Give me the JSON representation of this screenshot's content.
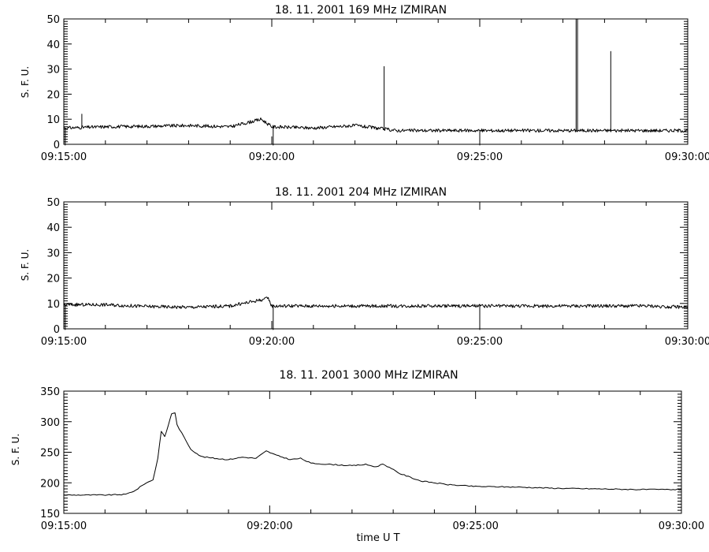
{
  "chart_data": [
    {
      "type": "line",
      "title": "18.  11.  2001    169  MHz    IZMIRAN",
      "ylabel": "S.  F.  U.",
      "xlabel": "",
      "xlim": [
        "09:15:00",
        "09:30:00"
      ],
      "ylim": [
        0,
        50
      ],
      "x_ticks": [
        "09:15:00",
        "09:20:00",
        "09:25:00",
        "09:30:00"
      ],
      "y_ticks": [
        0,
        10,
        20,
        30,
        40,
        50
      ],
      "grid": false,
      "series": [
        {
          "name": "",
          "baseline": [
            [
              "09:15:00",
              6.5
            ],
            [
              "09:16:00",
              7
            ],
            [
              "09:17:00",
              7.2
            ],
            [
              "09:18:00",
              7.5
            ],
            [
              "09:19:00",
              7
            ],
            [
              "09:19:45",
              10
            ],
            [
              "09:20:00",
              7
            ],
            [
              "09:21:00",
              6.5
            ],
            [
              "09:22:00",
              7.5
            ],
            [
              "09:23:00",
              5.5
            ],
            [
              "09:24:00",
              5.5
            ],
            [
              "09:25:00",
              5.5
            ],
            [
              "09:26:00",
              5.5
            ],
            [
              "09:27:00",
              5.5
            ],
            [
              "09:28:00",
              5.5
            ],
            [
              "09:29:00",
              5.5
            ],
            [
              "09:30:00",
              5.5
            ]
          ],
          "spikes": [
            [
              "09:15:26",
              12
            ],
            [
              "09:22:42",
              31
            ],
            [
              "09:27:19",
              50
            ],
            [
              "09:27:21",
              50
            ],
            [
              "09:28:09",
              37
            ]
          ],
          "dips": [
            "09:15:02",
            "09:20:02",
            "09:25:00"
          ]
        }
      ]
    },
    {
      "type": "line",
      "title": "18.  11.  2001    204  MHz    IZMIRAN",
      "ylabel": "S.  F.  U.",
      "xlabel": "",
      "xlim": [
        "09:15:00",
        "09:30:00"
      ],
      "ylim": [
        0,
        50
      ],
      "x_ticks": [
        "09:15:00",
        "09:20:00",
        "09:25:00",
        "09:30:00"
      ],
      "y_ticks": [
        0,
        10,
        20,
        30,
        40,
        50
      ],
      "grid": false,
      "series": [
        {
          "name": "",
          "baseline": [
            [
              "09:15:00",
              9.5
            ],
            [
              "09:16:00",
              9.5
            ],
            [
              "09:17:00",
              8.8
            ],
            [
              "09:18:00",
              8.5
            ],
            [
              "09:19:00",
              9
            ],
            [
              "09:19:55",
              12
            ],
            [
              "09:20:00",
              9
            ],
            [
              "09:21:00",
              9
            ],
            [
              "09:22:00",
              9
            ],
            [
              "09:23:00",
              9
            ],
            [
              "09:24:00",
              9
            ],
            [
              "09:25:00",
              9
            ],
            [
              "09:26:00",
              9
            ],
            [
              "09:27:00",
              9
            ],
            [
              "09:28:00",
              9
            ],
            [
              "09:29:00",
              9
            ],
            [
              "09:30:00",
              8.5
            ]
          ],
          "spikes": [],
          "dips": [
            "09:15:02",
            "09:20:02",
            "09:25:00"
          ]
        }
      ]
    },
    {
      "type": "line",
      "title": "18.  11.  2001    3000  MHz    IZMIRAN",
      "ylabel": "S.  F.  U.",
      "xlabel": "time    U  T",
      "xlim": [
        "09:15:00",
        "09:30:00"
      ],
      "ylim": [
        150,
        350
      ],
      "x_ticks": [
        "09:15:00",
        "09:20:00",
        "09:25:00",
        "09:30:00"
      ],
      "y_ticks": [
        150,
        200,
        250,
        300,
        350
      ],
      "grid": false,
      "series": [
        {
          "name": "",
          "points": [
            [
              "09:15:00",
              180
            ],
            [
              "09:16:00",
              180
            ],
            [
              "09:16:30",
              181
            ],
            [
              "09:16:45",
              188
            ],
            [
              "09:16:57",
              198
            ],
            [
              "09:17:10",
              205
            ],
            [
              "09:17:17",
              240
            ],
            [
              "09:17:22",
              285
            ],
            [
              "09:17:27",
              275
            ],
            [
              "09:17:32",
              293
            ],
            [
              "09:17:37",
              313
            ],
            [
              "09:17:42",
              315
            ],
            [
              "09:17:45",
              295
            ],
            [
              "09:17:55",
              275
            ],
            [
              "09:18:05",
              255
            ],
            [
              "09:18:20",
              243
            ],
            [
              "09:18:40",
              240
            ],
            [
              "09:19:00",
              238
            ],
            [
              "09:19:20",
              242
            ],
            [
              "09:19:40",
              240
            ],
            [
              "09:19:55",
              252
            ],
            [
              "09:20:10",
              245
            ],
            [
              "09:20:30",
              238
            ],
            [
              "09:20:45",
              240
            ],
            [
              "09:21:00",
              232
            ],
            [
              "09:21:30",
              230
            ],
            [
              "09:22:00",
              228
            ],
            [
              "09:22:20",
              230
            ],
            [
              "09:22:35",
              226
            ],
            [
              "09:22:45",
              231
            ],
            [
              "09:23:10",
              215
            ],
            [
              "09:23:40",
              203
            ],
            [
              "09:24:20",
              197
            ],
            [
              "09:25:00",
              194
            ],
            [
              "09:26:00",
              193
            ],
            [
              "09:27:00",
              191
            ],
            [
              "09:28:00",
              190
            ],
            [
              "09:29:00",
              189
            ],
            [
              "09:30:00",
              189
            ]
          ]
        }
      ]
    }
  ]
}
